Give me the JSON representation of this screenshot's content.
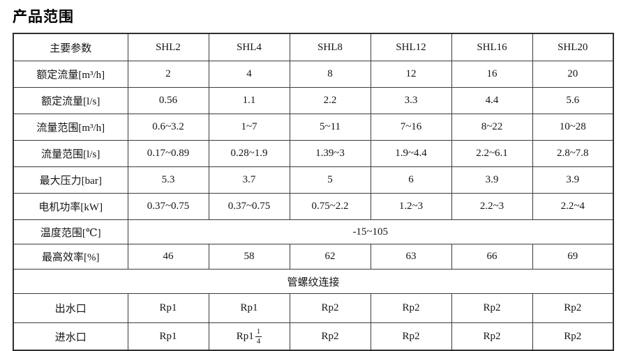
{
  "title": "产品范围",
  "table": {
    "header": {
      "param_label": "主要参数",
      "models": [
        "SHL2",
        "SHL4",
        "SHL8",
        "SHL12",
        "SHL16",
        "SHL20"
      ]
    },
    "rows": [
      {
        "label": "额定流量[m³/h]",
        "values": [
          "2",
          "4",
          "8",
          "12",
          "16",
          "20"
        ]
      },
      {
        "label": "额定流量[l/s]",
        "values": [
          "0.56",
          "1.1",
          "2.2",
          "3.3",
          "4.4",
          "5.6"
        ]
      },
      {
        "label": "流量范围[m³/h]",
        "values": [
          "0.6~3.2",
          "1~7",
          "5~11",
          "7~16",
          "8~22",
          "10~28"
        ]
      },
      {
        "label": "流量范围[l/s]",
        "values": [
          "0.17~0.89",
          "0.28~1.9",
          "1.39~3",
          "1.9~4.4",
          "2.2~6.1",
          "2.8~7.8"
        ]
      },
      {
        "label": "最大压力[bar]",
        "values": [
          "5.3",
          "3.7",
          "5",
          "6",
          "3.9",
          "3.9"
        ]
      },
      {
        "label": "电机功率[kW]",
        "values": [
          "0.37~0.75",
          "0.37~0.75",
          "0.75~2.2",
          "1.2~3",
          "2.2~3",
          "2.2~4"
        ]
      }
    ],
    "temperature_row": {
      "label": "温度范围[℃]",
      "value": "-15~105"
    },
    "efficiency_row": {
      "label": "最高效率[%]",
      "values": [
        "46",
        "58",
        "62",
        "63",
        "66",
        "69"
      ]
    },
    "connection_banner": "管螺纹连接",
    "outlet_row": {
      "label": "出水口",
      "values": [
        "Rp1",
        "Rp1",
        "Rp2",
        "Rp2",
        "Rp2",
        "Rp2"
      ]
    },
    "inlet_row": {
      "label": "进水口",
      "values": [
        "Rp1",
        "Rp1",
        "Rp2",
        "Rp2",
        "Rp2",
        "Rp2"
      ],
      "fraction": {
        "numerator": "1",
        "denominator": "4"
      }
    }
  }
}
